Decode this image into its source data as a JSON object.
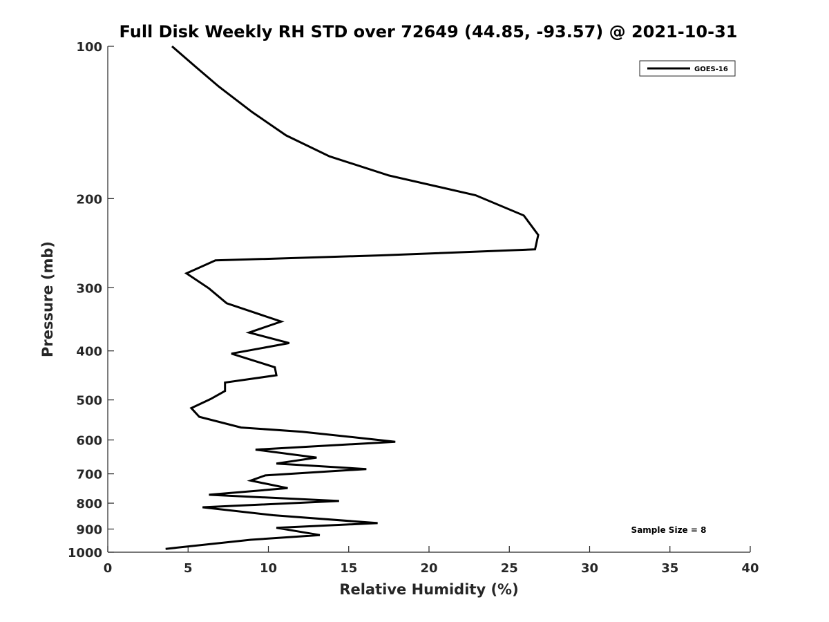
{
  "chart_data": {
    "type": "line",
    "title": "Full Disk Weekly RH STD over 72649 (44.85, -93.57) @ 2021-10-31",
    "xlabel": "Relative Humidity (%)",
    "ylabel": "Pressure (mb)",
    "xlim": [
      0,
      40
    ],
    "ylim": [
      100,
      1000
    ],
    "y_scale": "log",
    "y_reversed": true,
    "x_ticks": [
      0,
      5,
      10,
      15,
      20,
      25,
      30,
      35,
      40
    ],
    "x_tick_labels": [
      "0",
      "5",
      "10",
      "15",
      "20",
      "25",
      "30",
      "35",
      "40"
    ],
    "y_ticks": [
      100,
      200,
      300,
      400,
      500,
      600,
      700,
      800,
      900,
      1000
    ],
    "y_tick_labels": [
      "100",
      "200",
      "300",
      "400",
      "500",
      "600",
      "700",
      "800",
      "900",
      "1000"
    ],
    "grid": false,
    "legend_position": "top-right",
    "series": [
      {
        "name": "GOES-16",
        "color": "#000000",
        "points": [
          [
            4.0,
            100
          ],
          [
            5.5,
            110
          ],
          [
            6.9,
            120
          ],
          [
            9.0,
            135
          ],
          [
            11.1,
            150
          ],
          [
            13.8,
            165
          ],
          [
            17.5,
            180
          ],
          [
            22.9,
            197
          ],
          [
            25.9,
            216
          ],
          [
            26.8,
            236
          ],
          [
            26.6,
            252
          ],
          [
            17.0,
            259
          ],
          [
            6.7,
            265
          ],
          [
            4.9,
            281
          ],
          [
            6.3,
            301
          ],
          [
            7.4,
            322
          ],
          [
            10.8,
            350
          ],
          [
            8.8,
            368
          ],
          [
            11.3,
            386
          ],
          [
            7.7,
            405
          ],
          [
            10.4,
            431
          ],
          [
            10.5,
            447
          ],
          [
            7.3,
            462
          ],
          [
            7.3,
            480
          ],
          [
            6.4,
            498
          ],
          [
            5.2,
            519
          ],
          [
            5.7,
            540
          ],
          [
            8.3,
            567
          ],
          [
            12.1,
            578
          ],
          [
            17.9,
            605
          ],
          [
            9.2,
            627
          ],
          [
            13.0,
            650
          ],
          [
            10.5,
            668
          ],
          [
            16.1,
            685
          ],
          [
            9.8,
            705
          ],
          [
            8.9,
            722
          ],
          [
            11.2,
            747
          ],
          [
            6.3,
            770
          ],
          [
            14.4,
            792
          ],
          [
            5.9,
            815
          ],
          [
            10.3,
            845
          ],
          [
            16.8,
            876
          ],
          [
            10.5,
            895
          ],
          [
            13.2,
            925
          ],
          [
            8.9,
            945
          ],
          [
            3.6,
            985
          ]
        ]
      }
    ],
    "annotations": [
      "Sample Size = 8"
    ]
  }
}
